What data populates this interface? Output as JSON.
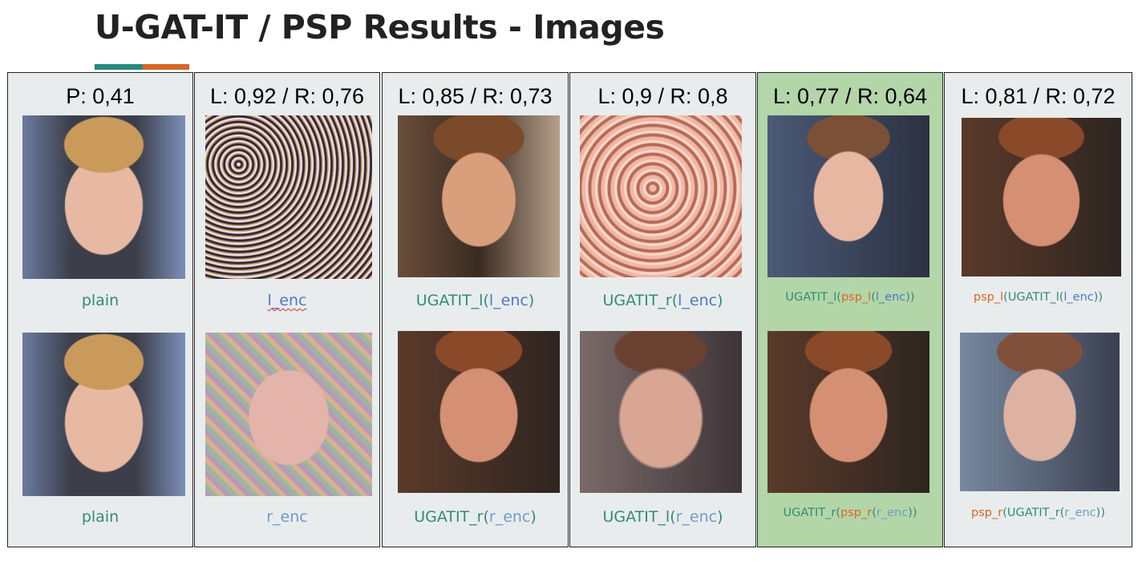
{
  "title": "U-GAT-IT / PSP Results - Images",
  "colors": {
    "teal": "#2f8d74",
    "orange": "#e0641f",
    "blue": "#4d78cc",
    "panel_green": "#b3d6a8",
    "panel_gray": "#e9eced"
  },
  "columns": [
    {
      "score": "P: 0,41",
      "top": {
        "image": "photo-face-original",
        "caption": [
          {
            "text": "plain",
            "color": "teal"
          }
        ]
      },
      "bottom": {
        "image": "photo-face-original",
        "caption": [
          {
            "text": "plain",
            "color": "teal"
          }
        ]
      }
    },
    {
      "score": "L: 0,92 / R: 0,76",
      "top": {
        "image": "noise-pattern-image",
        "caption": [
          {
            "text": "l_enc",
            "color": "blue"
          }
        ]
      },
      "bottom": {
        "image": "noisy-face-image",
        "caption": [
          {
            "text": "r_enc",
            "color": "lblue"
          }
        ]
      }
    },
    {
      "score": "L: 0,85 / R: 0,73",
      "top": {
        "image": "generated-face-image",
        "caption": [
          {
            "text": "UGATIT_l(",
            "color": "teal"
          },
          {
            "text": "l_enc",
            "color": "blue"
          },
          {
            "text": ")",
            "color": "teal"
          }
        ]
      },
      "bottom": {
        "image": "generated-face-image",
        "caption": [
          {
            "text": "UGATIT_r(",
            "color": "teal"
          },
          {
            "text": "r_enc",
            "color": "lblue"
          },
          {
            "text": ")",
            "color": "teal"
          }
        ]
      }
    },
    {
      "score": "L: 0,9 / R: 0,8",
      "top": {
        "image": "distorted-pattern-image",
        "caption": [
          {
            "text": "UGATIT_r(",
            "color": "teal"
          },
          {
            "text": "l_enc",
            "color": "blue"
          },
          {
            "text": ")",
            "color": "teal"
          }
        ]
      },
      "bottom": {
        "image": "blurred-face-image",
        "caption": [
          {
            "text": "UGATIT_l(",
            "color": "teal"
          },
          {
            "text": "r_enc",
            "color": "lblue"
          },
          {
            "text": ")",
            "color": "teal"
          }
        ]
      }
    },
    {
      "score": "L: 0,77 / R: 0,64",
      "highlight": true,
      "top": {
        "image": "generated-face-image",
        "caption": [
          {
            "text": "UGATIT_l(",
            "color": "teal"
          },
          {
            "text": "psp_l",
            "color": "orange"
          },
          {
            "text": "(",
            "color": "teal"
          },
          {
            "text": "l_enc",
            "color": "blue"
          },
          {
            "text": "))",
            "color": "teal"
          }
        ]
      },
      "bottom": {
        "image": "generated-face-image",
        "caption": [
          {
            "text": "UGATIT_r(",
            "color": "teal"
          },
          {
            "text": "psp_r",
            "color": "orange"
          },
          {
            "text": "(",
            "color": "teal"
          },
          {
            "text": "r_enc",
            "color": "lblue"
          },
          {
            "text": "))",
            "color": "teal"
          }
        ]
      }
    },
    {
      "score": "L: 0,81 / R: 0,72",
      "top": {
        "image": "generated-face-image",
        "caption": [
          {
            "text": "psp_l",
            "color": "orange"
          },
          {
            "text": "(UGATIT_l(",
            "color": "teal"
          },
          {
            "text": "l_enc",
            "color": "blue"
          },
          {
            "text": "))",
            "color": "teal"
          }
        ]
      },
      "bottom": {
        "image": "generated-face-image",
        "caption": [
          {
            "text": "psp_r",
            "color": "orange"
          },
          {
            "text": "(UGATIT_r(",
            "color": "teal"
          },
          {
            "text": "r_enc",
            "color": "lblue"
          },
          {
            "text": "))",
            "color": "teal"
          }
        ]
      }
    }
  ]
}
